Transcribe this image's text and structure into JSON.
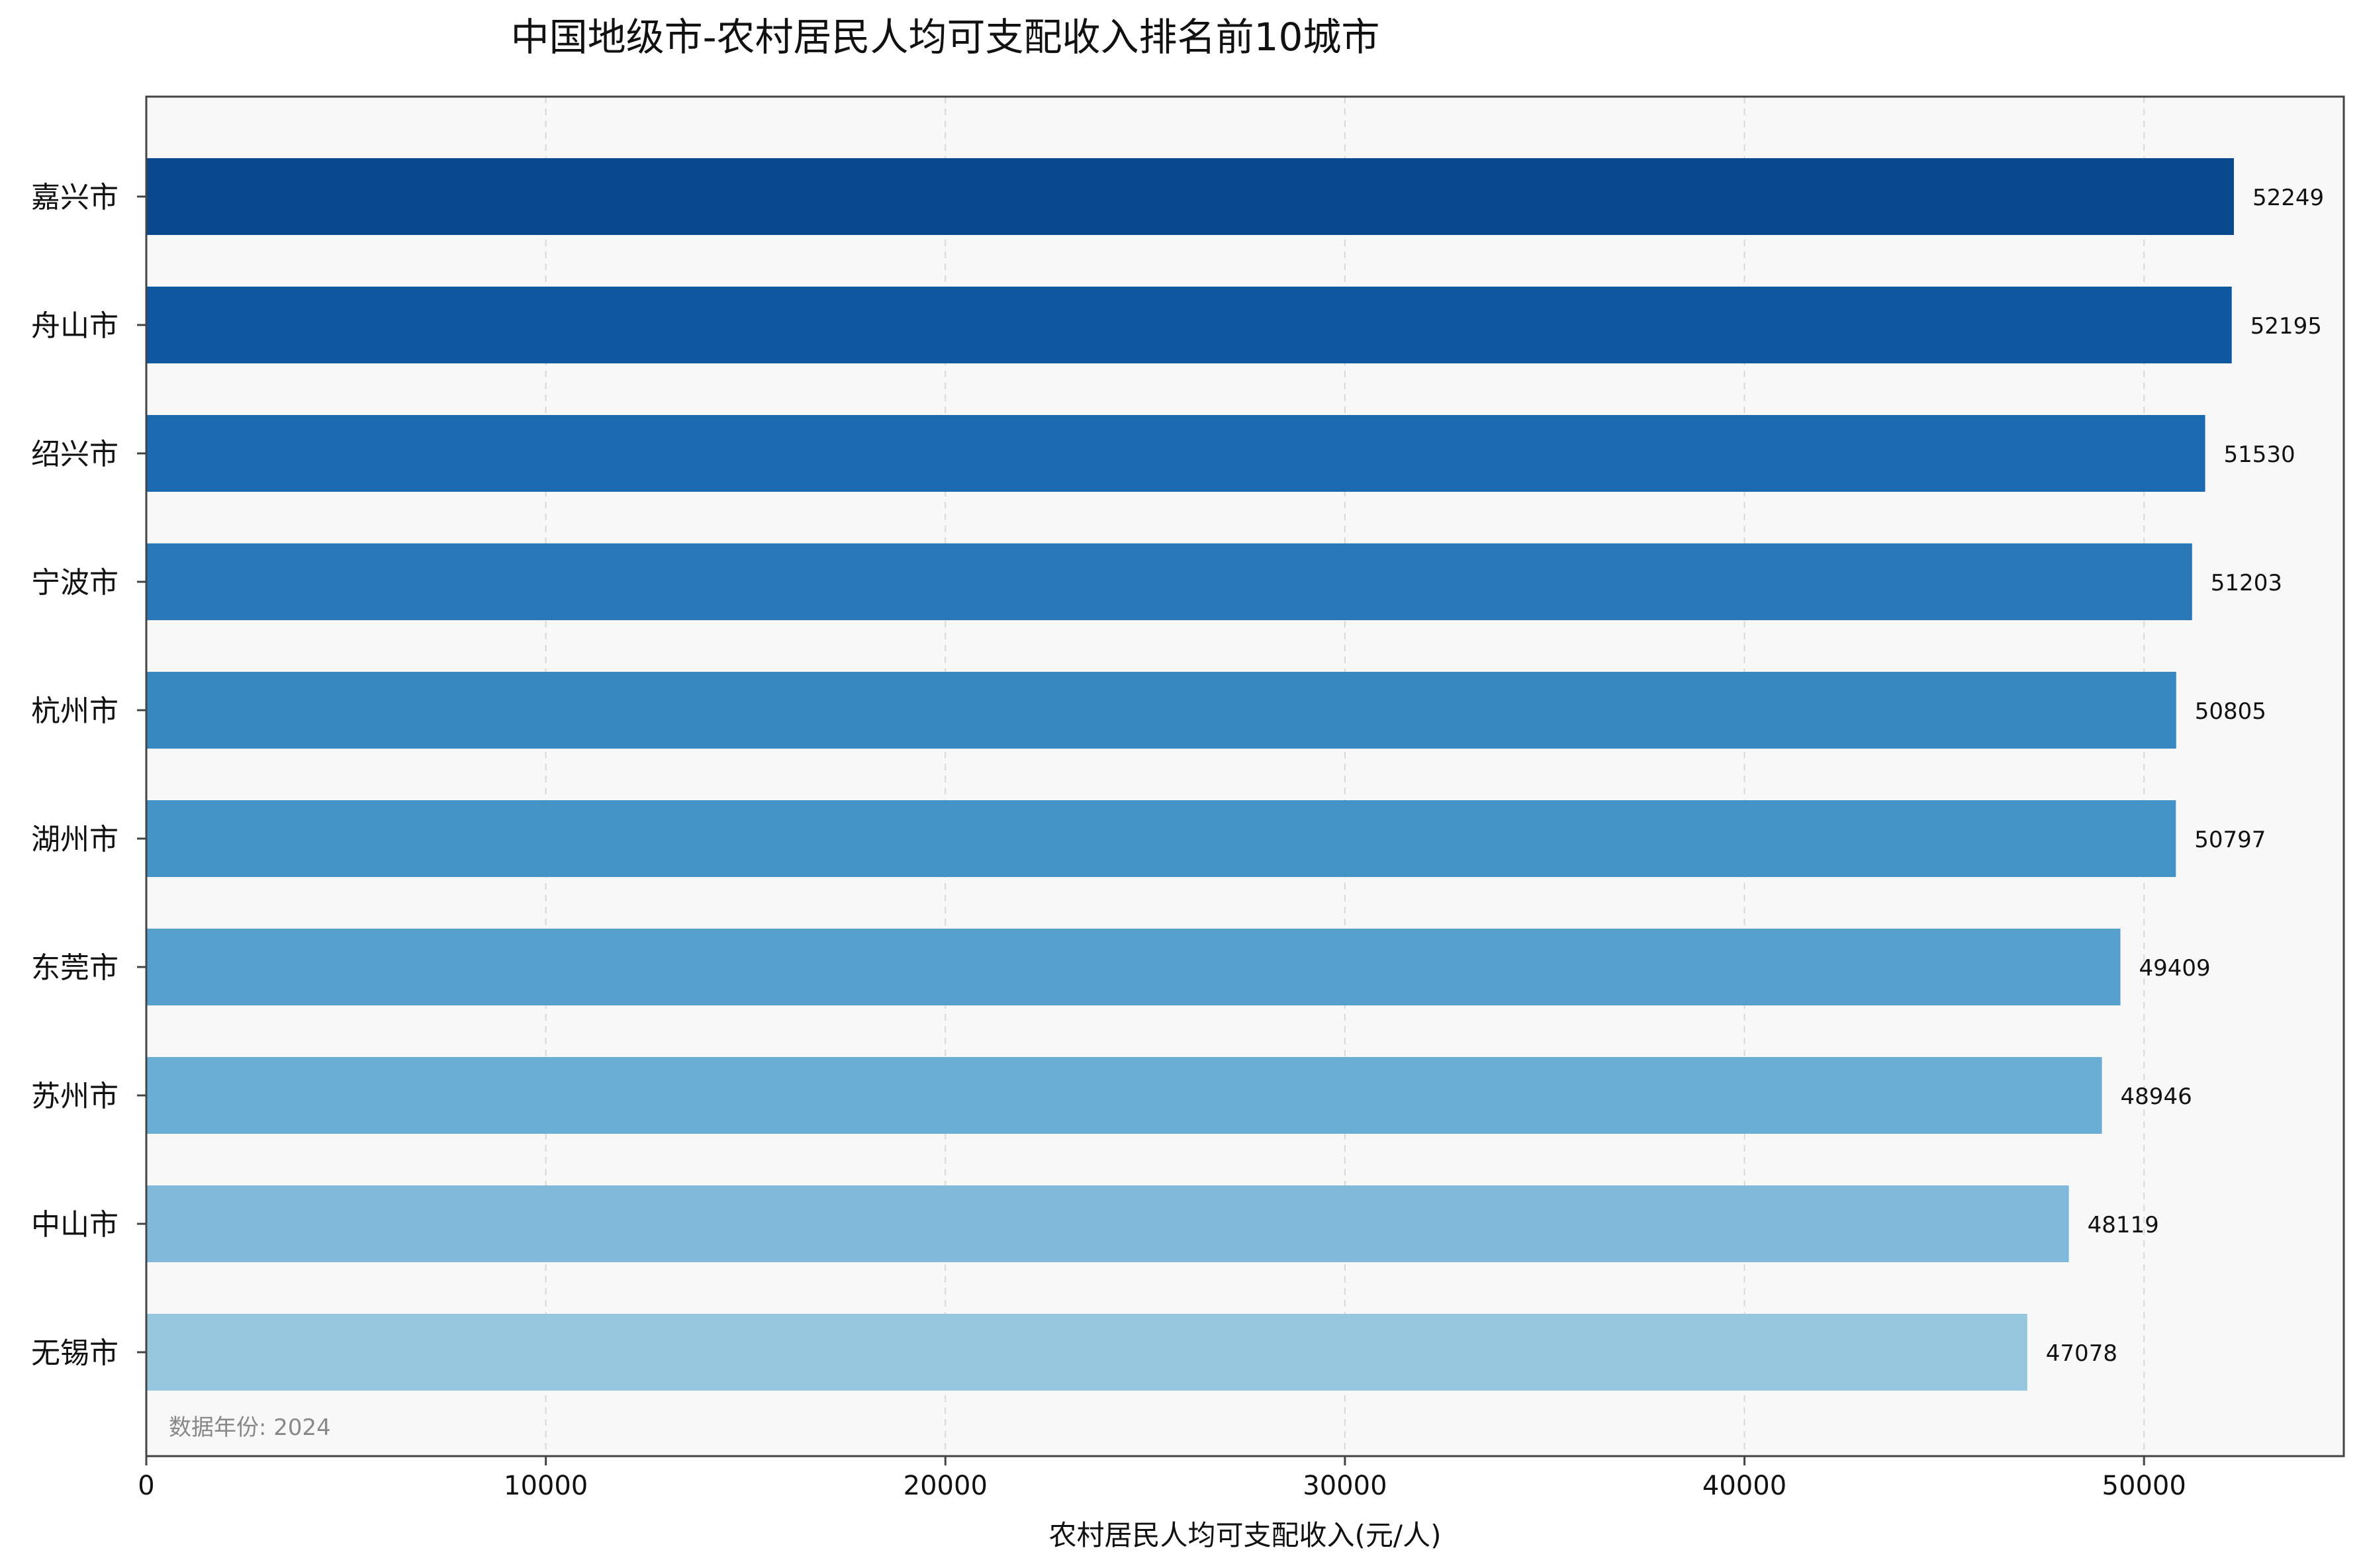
{
  "chart_data": {
    "type": "bar",
    "orientation": "horizontal",
    "title": "中国地级市-农村居民人均可支配收入排名前10城市",
    "xlabel": "农村居民人均可支配收入(元/人)",
    "ylabel": "",
    "xlim": [
      0,
      55000
    ],
    "x_ticks": [
      0,
      10000,
      20000,
      30000,
      40000,
      50000
    ],
    "x_tick_labels": [
      "0",
      "10000",
      "20000",
      "30000",
      "40000",
      "50000"
    ],
    "categories": [
      "嘉兴市",
      "舟山市",
      "绍兴市",
      "宁波市",
      "杭州市",
      "湖州市",
      "东莞市",
      "苏州市",
      "中山市",
      "无锡市"
    ],
    "values": [
      52249,
      52195,
      51530,
      51203,
      50805,
      50797,
      49409,
      48946,
      48119,
      47078
    ],
    "data_labels": [
      "52249",
      "52195",
      "51530",
      "51203",
      "50805",
      "50797",
      "49409",
      "48946",
      "48119",
      "47078"
    ],
    "bar_colors": [
      "#08488e",
      "#0e58a2",
      "#1b69af",
      "#2979b9",
      "#3787c0",
      "#4493c6",
      "#57a0ce",
      "#6aadd5",
      "#80b9da",
      "#97c6df"
    ],
    "plot_background": "#f8f8f8",
    "grid": "vertical dashed",
    "annotation": "数据年份: 2024"
  }
}
